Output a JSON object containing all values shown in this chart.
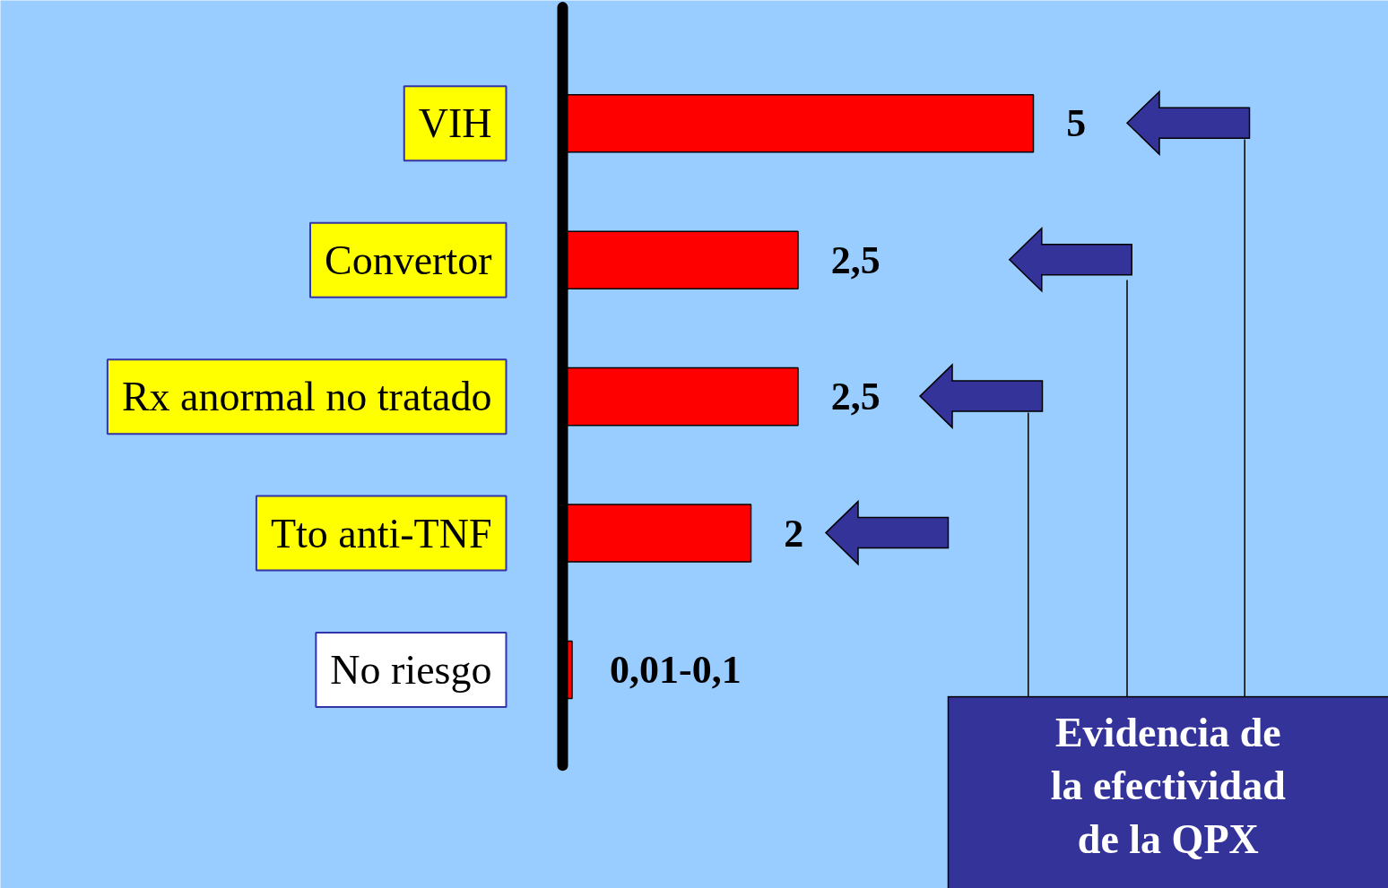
{
  "chart_data": {
    "type": "bar",
    "orientation": "horizontal",
    "categories": [
      "VIH",
      "Convertor",
      "Rx anormal no tratado",
      "Tto anti-TNF",
      "No riesgo"
    ],
    "values": [
      5,
      2.5,
      2.5,
      2,
      0.1
    ],
    "value_labels": [
      "5",
      "2,5",
      "2,5",
      "2",
      "0,01-0,1"
    ],
    "color": "#ff0000",
    "tick_labels": "y",
    "grid": false,
    "annotations": [
      "Evidencia de\nla efectividad\nde la QPX"
    ]
  }
}
